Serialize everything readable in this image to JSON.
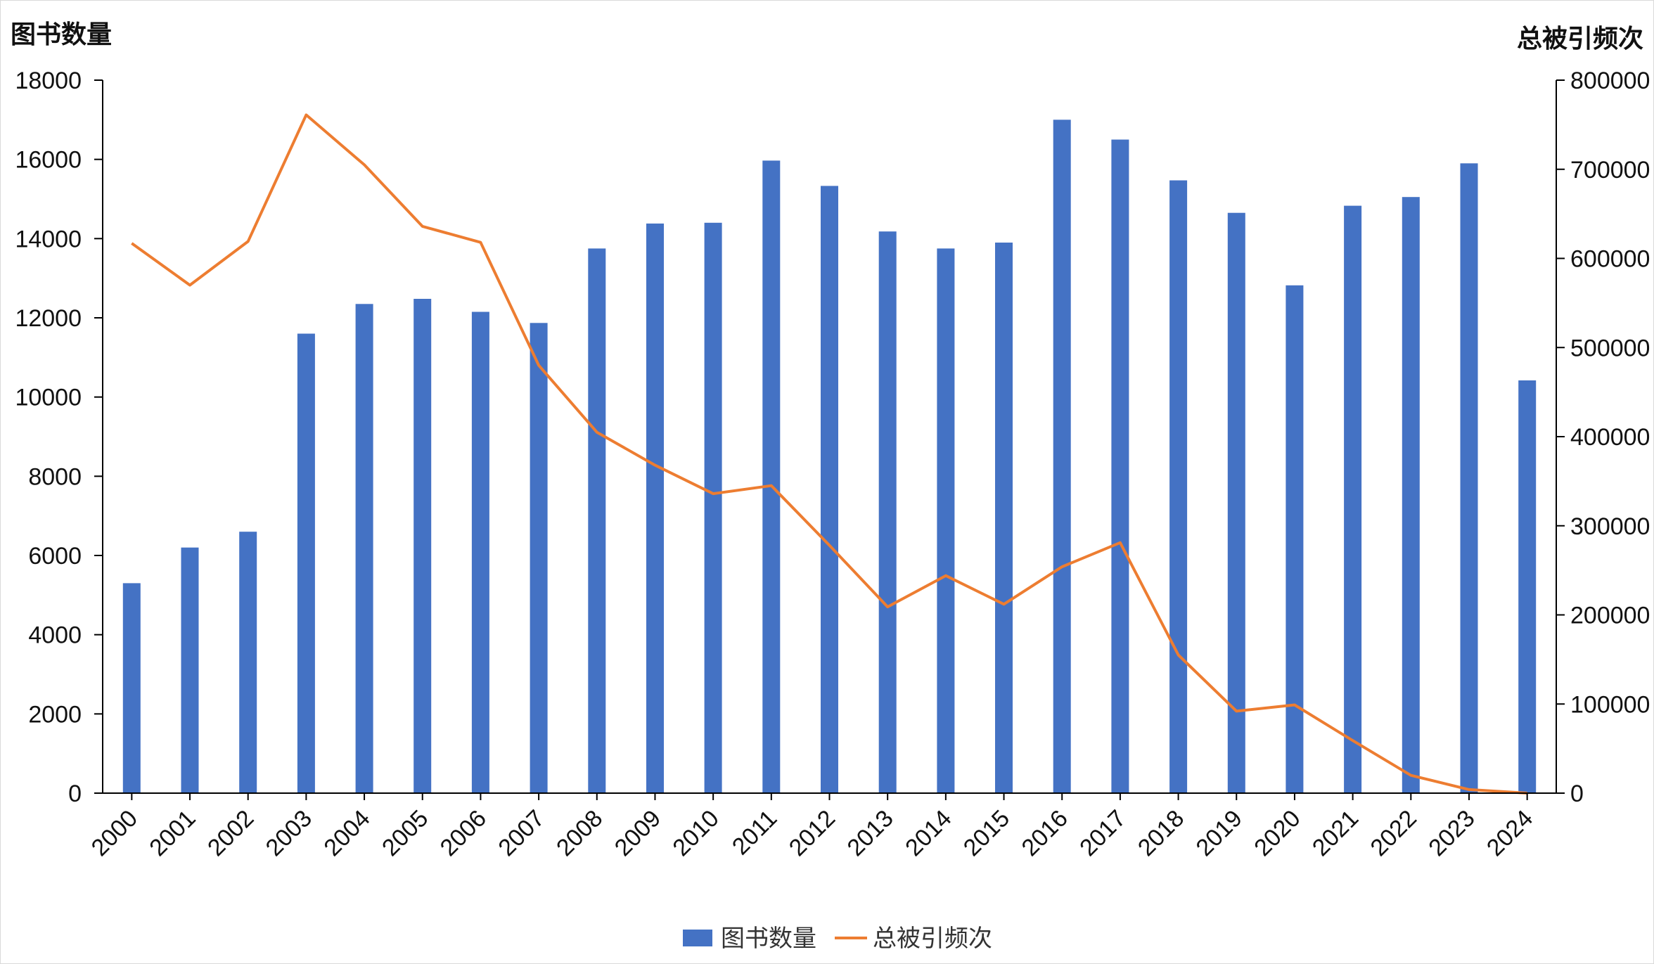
{
  "chart_data": {
    "type": "bar-line-combo",
    "categories": [
      "2000",
      "2001",
      "2002",
      "2003",
      "2004",
      "2005",
      "2006",
      "2007",
      "2008",
      "2009",
      "2010",
      "2011",
      "2012",
      "2013",
      "2014",
      "2015",
      "2016",
      "2017",
      "2018",
      "2019",
      "2020",
      "2021",
      "2022",
      "2023",
      "2024"
    ],
    "series": [
      {
        "name": "图书数量",
        "type": "bar",
        "axis": "left",
        "color": "#4472C4",
        "values": [
          5300,
          6200,
          6600,
          11600,
          12350,
          12480,
          12150,
          11870,
          13750,
          14380,
          14400,
          15970,
          15330,
          14180,
          13750,
          13900,
          17000,
          16500,
          15470,
          14650,
          12820,
          14830,
          15050,
          15900,
          10420
        ]
      },
      {
        "name": "总被引频次",
        "type": "line",
        "axis": "right",
        "color": "#ED7D31",
        "values": [
          617000,
          570000,
          619000,
          761000,
          705000,
          636000,
          618000,
          480000,
          405000,
          368000,
          336000,
          345000,
          278000,
          209000,
          244000,
          212000,
          254000,
          281000,
          155000,
          92000,
          99000,
          59000,
          20000,
          4000,
          0
        ]
      }
    ],
    "ylabel_left": "图书数量",
    "ylabel_right": "总被引频次",
    "ylim_left": [
      0,
      18000
    ],
    "yticks_left": [
      "0",
      "2000",
      "4000",
      "6000",
      "8000",
      "10000",
      "12000",
      "14000",
      "16000",
      "18000"
    ],
    "ylim_right": [
      0,
      800000
    ],
    "yticks_right": [
      "0",
      "100000",
      "200000",
      "300000",
      "400000",
      "500000",
      "600000",
      "700000",
      "800000"
    ],
    "grid": false,
    "legend": "bottom"
  }
}
